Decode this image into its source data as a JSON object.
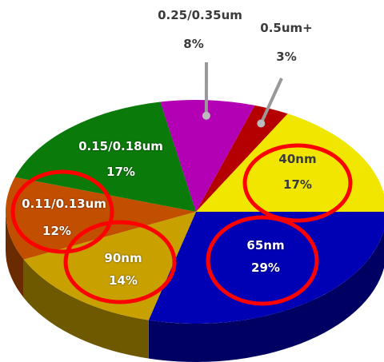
{
  "chart_data": {
    "type": "pie",
    "slices": [
      {
        "label": "65nm",
        "value": 29,
        "pct": "29%",
        "color": "#0000b4"
      },
      {
        "label": "90nm",
        "value": 14,
        "pct": "14%",
        "color": "#c8a000"
      },
      {
        "label": "0.11/0.13um",
        "value": 12,
        "pct": "12%",
        "color": "#c24e00"
      },
      {
        "label": "0.15/0.18um",
        "value": 17,
        "pct": "17%",
        "color": "#0a7a0a"
      },
      {
        "label": "0.25/0.35um",
        "value": 8,
        "pct": "8%",
        "color": "#b400b4"
      },
      {
        "label": "0.5um+",
        "value": 3,
        "pct": "3%",
        "color": "#b40000"
      },
      {
        "label": "40nm",
        "value": 17,
        "pct": "17%",
        "color": "#f0e600"
      }
    ],
    "highlighted": [
      "40nm",
      "0.11/0.13um",
      "90nm",
      "65nm"
    ],
    "highlight_color": "#ff0000",
    "style": "3d"
  }
}
